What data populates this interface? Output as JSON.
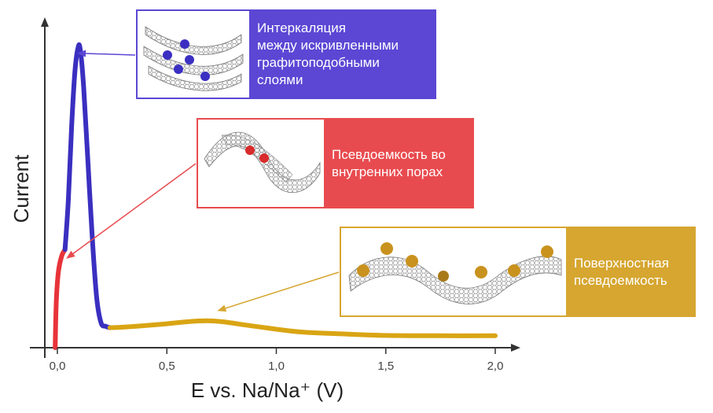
{
  "chart_data": {
    "type": "line",
    "xlabel": "E vs. Na/Na⁺ (V)",
    "ylabel": "Current",
    "xlim": [
      -0.05,
      2.05
    ],
    "ylim": [
      0,
      1
    ],
    "x_ticks": [
      "0,0",
      "0,5",
      "1,0",
      "1,5",
      "2,0"
    ],
    "x_tick_values": [
      0.0,
      0.5,
      1.0,
      1.5,
      2.0
    ],
    "grid": false,
    "series": [
      {
        "color": "#e8333a",
        "points": [
          [
            -0.01,
            0.0
          ],
          [
            -0.005,
            0.15
          ],
          [
            0.005,
            0.25
          ],
          [
            0.02,
            0.3
          ],
          [
            0.035,
            0.32
          ]
        ]
      },
      {
        "color": "#3a2fc0",
        "points": [
          [
            0.035,
            0.32
          ],
          [
            0.05,
            0.48
          ],
          [
            0.065,
            0.72
          ],
          [
            0.08,
            0.9
          ],
          [
            0.095,
            0.98
          ],
          [
            0.105,
            0.97
          ],
          [
            0.12,
            0.85
          ],
          [
            0.14,
            0.6
          ],
          [
            0.16,
            0.35
          ],
          [
            0.18,
            0.16
          ],
          [
            0.2,
            0.08
          ],
          [
            0.22,
            0.07
          ],
          [
            0.24,
            0.065
          ]
        ]
      },
      {
        "color": "#d9a514",
        "points": [
          [
            0.24,
            0.065
          ],
          [
            0.3,
            0.067
          ],
          [
            0.4,
            0.072
          ],
          [
            0.5,
            0.078
          ],
          [
            0.6,
            0.085
          ],
          [
            0.68,
            0.088
          ],
          [
            0.75,
            0.085
          ],
          [
            0.9,
            0.07
          ],
          [
            1.1,
            0.052
          ],
          [
            1.3,
            0.045
          ],
          [
            1.5,
            0.04
          ],
          [
            1.75,
            0.039
          ],
          [
            2.0,
            0.039
          ]
        ]
      }
    ],
    "annotations": [
      {
        "text": "Интеркаляция\nмежду искривленными\nграфитоподобными\nслоями",
        "color": "#5b47d4",
        "target": [
          0.09,
          0.96
        ]
      },
      {
        "text": "Псевдоемкость во\nвнутренних порах",
        "color": "#e84b4f",
        "target": [
          0.04,
          0.29
        ]
      },
      {
        "text": "Поверхностная\nпсевдоемкость",
        "color": "#d6a630",
        "target": [
          0.73,
          0.12
        ]
      }
    ]
  },
  "colors": {
    "axis": "#333333",
    "intercalation": "#5b47d4",
    "internal_pores": "#e84b4f",
    "surface": "#d6a630",
    "graphene": "#9a9a9a",
    "ion_blue": "#3b2fc2",
    "ion_red": "#d92b2b",
    "ion_gold": "#c9921e"
  },
  "callouts": {
    "intercalation": {
      "text": "Интеркаляция\nмежду искривленными\nграфитоподобными\nслоями",
      "icon": "curved-graphene-layers-icon"
    },
    "internal_pores": {
      "text": "Псевдоемкость во\nвнутренних порах",
      "icon": "twisted-graphene-pore-icon"
    },
    "surface": {
      "text": "Поверхностная\nпсевдоемкость",
      "icon": "wavy-graphene-surface-icon"
    }
  }
}
